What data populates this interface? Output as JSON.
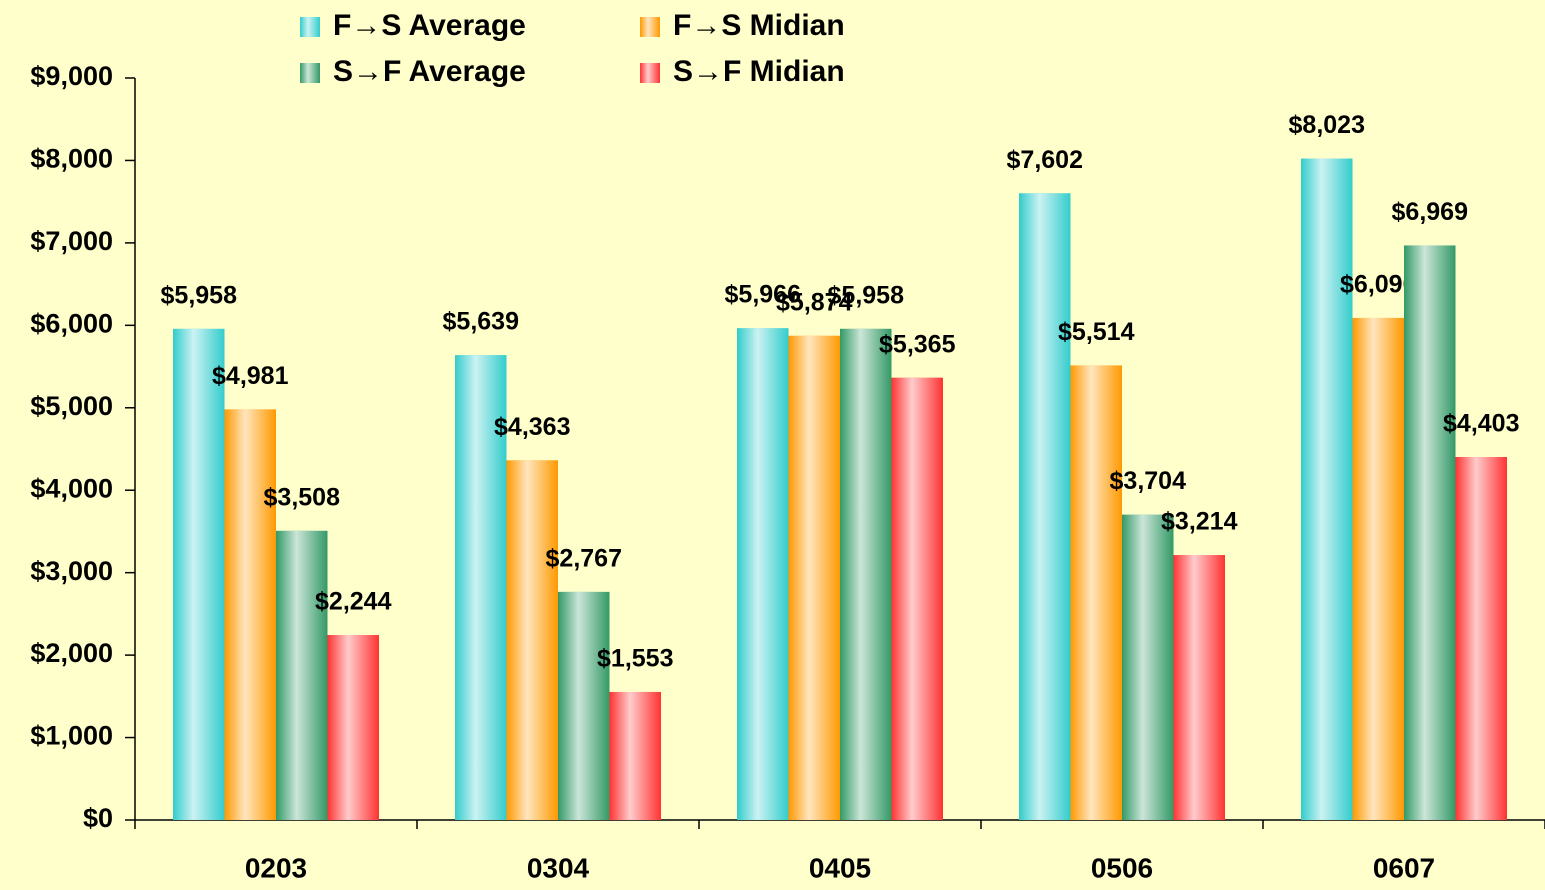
{
  "chart_data": {
    "type": "bar",
    "categories": [
      "0203",
      "0304",
      "0405",
      "0506",
      "0607"
    ],
    "series": [
      {
        "name": "F→S Average",
        "color": "#33cccc",
        "values": [
          5958,
          5639,
          5966,
          7602,
          8023
        ],
        "value_labels": [
          "$5,958",
          "$5,639",
          "$5,966",
          "$7,602",
          "$8,023"
        ]
      },
      {
        "name": "F→S Midian",
        "color": "#ff9900",
        "values": [
          4981,
          4363,
          5874,
          5514,
          6090
        ],
        "value_labels": [
          "$4,981",
          "$4,363",
          "$5,874",
          "$5,514",
          "$6,090"
        ]
      },
      {
        "name": "S→F Average",
        "color": "#339966",
        "values": [
          3508,
          2767,
          5958,
          3704,
          6969
        ],
        "value_labels": [
          "$3,508",
          "$2,767",
          "$5,958",
          "$3,704",
          "$6,969"
        ]
      },
      {
        "name": "S→F Midian",
        "color": "#ff3333",
        "values": [
          2244,
          1553,
          5365,
          3214,
          4403
        ],
        "value_labels": [
          "$2,244",
          "$1,553",
          "$5,365",
          "$3,214",
          "$4,403"
        ]
      }
    ],
    "ylim": [
      0,
      9000
    ],
    "yticks": [
      {
        "value": 0,
        "label": "$0"
      },
      {
        "value": 1000,
        "label": "$1,000"
      },
      {
        "value": 2000,
        "label": "$2,000"
      },
      {
        "value": 3000,
        "label": "$3,000"
      },
      {
        "value": 4000,
        "label": "$4,000"
      },
      {
        "value": 5000,
        "label": "$5,000"
      },
      {
        "value": 6000,
        "label": "$6,000"
      },
      {
        "value": 7000,
        "label": "$7,000"
      },
      {
        "value": 8000,
        "label": "$8,000"
      },
      {
        "value": 9000,
        "label": "$9,000"
      }
    ],
    "legend": "top"
  }
}
